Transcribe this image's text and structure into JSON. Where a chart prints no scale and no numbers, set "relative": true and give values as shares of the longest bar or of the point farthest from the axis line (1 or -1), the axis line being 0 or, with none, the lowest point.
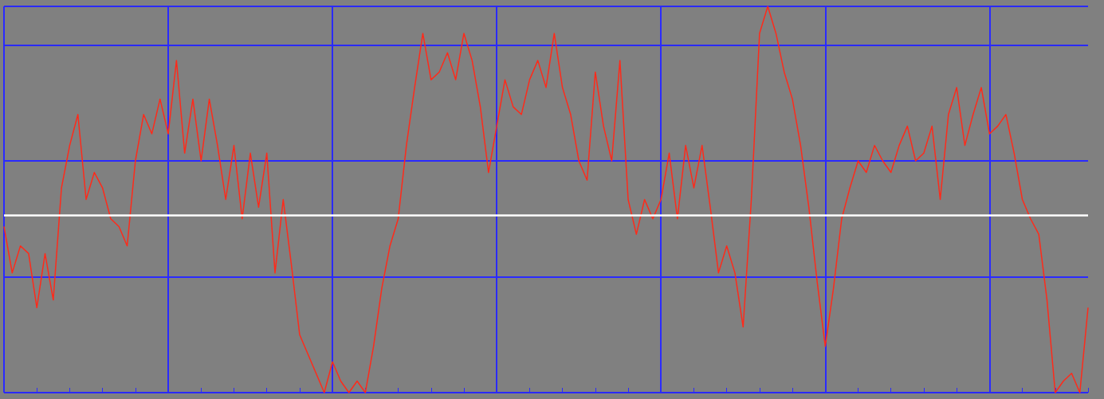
{
  "chart_data": {
    "type": "line",
    "relative": true,
    "grid": true,
    "marker": "none",
    "line_style": "solid",
    "categories": [
      null,
      null,
      null,
      null,
      null,
      null,
      null,
      null,
      null,
      null,
      null,
      null,
      null,
      null,
      null,
      null,
      null,
      null,
      null,
      null,
      null,
      null,
      null,
      null,
      null,
      null,
      null,
      null,
      null,
      null,
      null,
      null,
      null,
      null,
      null,
      null,
      null,
      null,
      null,
      null,
      null,
      null,
      null,
      null,
      null,
      null,
      null,
      null,
      null,
      null,
      null,
      null,
      null,
      null,
      null,
      null,
      null,
      null,
      null,
      null,
      null,
      null,
      null,
      null,
      null,
      null,
      null,
      null,
      null,
      null,
      null,
      null,
      null,
      null,
      null,
      null,
      null,
      null,
      null,
      null,
      null,
      null,
      null,
      null,
      null,
      null,
      null,
      null,
      null,
      null,
      null,
      null,
      null,
      null,
      null,
      null,
      null,
      null,
      null,
      null,
      null,
      null,
      null,
      null,
      null,
      null,
      null,
      null,
      null,
      null,
      null,
      null,
      null,
      null,
      null,
      null,
      null,
      null,
      null,
      null,
      null,
      null,
      null,
      null,
      null,
      null,
      null,
      null,
      null,
      null,
      null,
      null,
      null
    ],
    "series": [
      {
        "color": "#ff2a1a",
        "values": [
          0.43,
          0.31,
          0.38,
          0.36,
          0.22,
          0.36,
          0.24,
          0.53,
          0.64,
          0.72,
          0.5,
          0.57,
          0.53,
          0.45,
          0.43,
          0.38,
          0.6,
          0.72,
          0.67,
          0.76,
          0.67,
          0.86,
          0.62,
          0.76,
          0.6,
          0.76,
          0.64,
          0.5,
          0.64,
          0.45,
          0.62,
          0.48,
          0.62,
          0.31,
          0.5,
          0.33,
          0.15,
          0.1,
          0.05,
          0.0,
          0.08,
          0.03,
          0.0,
          0.03,
          0.0,
          0.12,
          0.27,
          0.38,
          0.45,
          0.64,
          0.79,
          0.93,
          0.81,
          0.83,
          0.88,
          0.81,
          0.93,
          0.86,
          0.74,
          0.57,
          0.69,
          0.81,
          0.74,
          0.72,
          0.81,
          0.86,
          0.79,
          0.93,
          0.79,
          0.72,
          0.6,
          0.55,
          0.83,
          0.69,
          0.6,
          0.86,
          0.5,
          0.41,
          0.5,
          0.45,
          0.5,
          0.62,
          0.45,
          0.64,
          0.53,
          0.64,
          0.48,
          0.31,
          0.38,
          0.31,
          0.17,
          0.5,
          0.93,
          1,
          0.93,
          0.83,
          0.76,
          0.64,
          0.48,
          0.29,
          0.12,
          0.27,
          0.45,
          0.53,
          0.6,
          0.57,
          0.64,
          0.6,
          0.57,
          0.64,
          0.69,
          0.6,
          0.62,
          0.69,
          0.5,
          0.72,
          0.79,
          0.64,
          0.72,
          0.79,
          0.67,
          0.69,
          0.72,
          0.62,
          0.5,
          0.45,
          0.41,
          0.24,
          0.0,
          0.03,
          0.05,
          0.0,
          0.22
        ]
      }
    ],
    "ref_lines": [
      {
        "axis": "y",
        "value": 0.46,
        "color": "#ffffff"
      }
    ]
  }
}
